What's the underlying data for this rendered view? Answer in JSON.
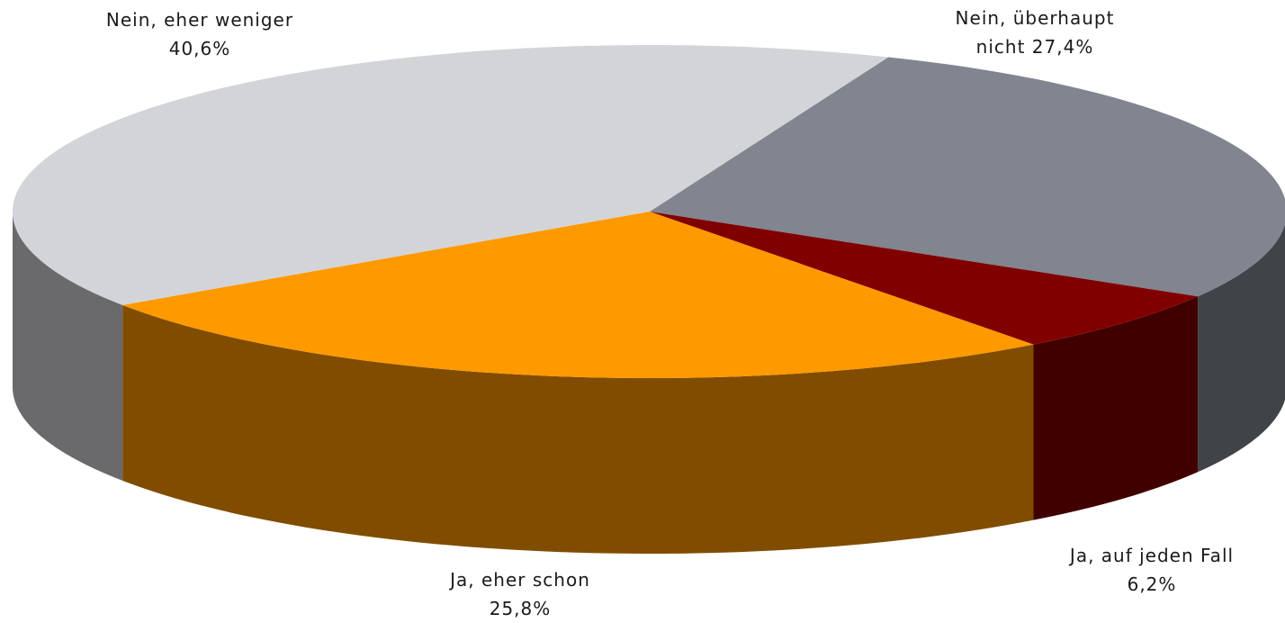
{
  "chart_data": {
    "type": "pie3d",
    "categories": [
      "Nein, überhaupt nicht",
      "Ja, auf jeden Fall",
      "Ja, eher schon",
      "Nein, eher weniger"
    ],
    "values": [
      27.4,
      6.2,
      25.8,
      40.6
    ],
    "value_labels": [
      "27,4%",
      "6,2%",
      "25,8%",
      "40,6%"
    ],
    "colors": [
      "#80858f",
      "#800000",
      "#ff9900",
      "#d3d4d8"
    ]
  }
}
